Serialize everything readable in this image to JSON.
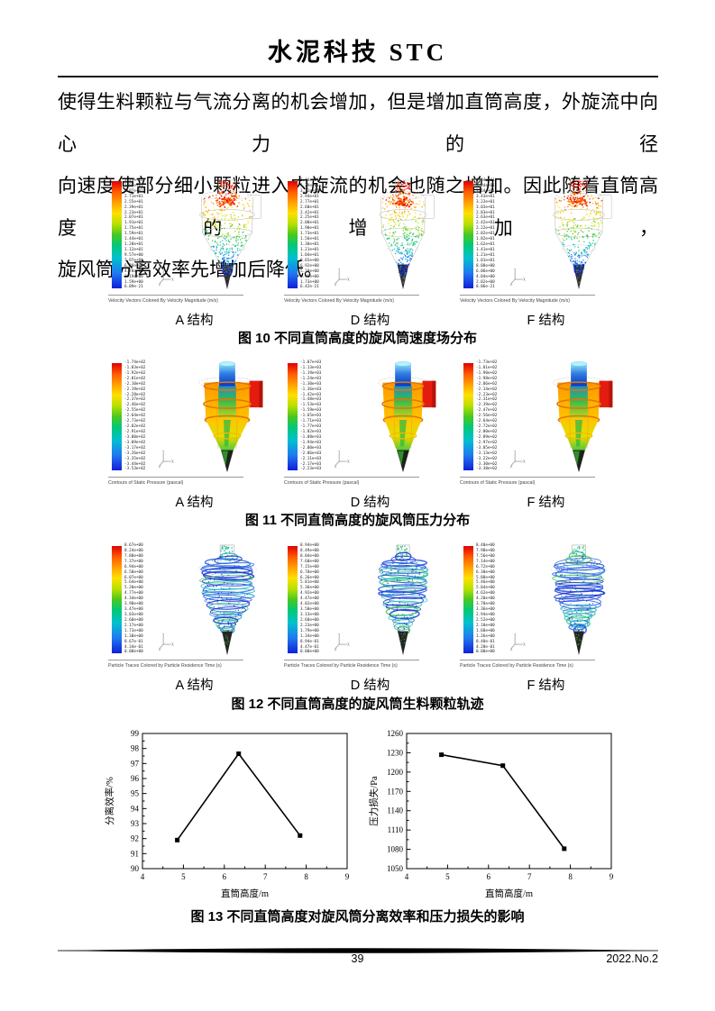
{
  "header": {
    "title": "水泥科技 STC"
  },
  "paragraph": {
    "lines": [
      "使得生料颗粒与气流分离的机会增加，但是增加直筒高度，外旋流中向心力的径",
      "向速度使部分细小颗粒进入内旋流的机会也随之增加。因此随着直筒高度的增加，",
      "旋风筒分离效率先增加后降低。"
    ]
  },
  "figures": {
    "fig10": {
      "caption": "图 10 不同直筒高度的旋风筒速度场分布",
      "legend_text": "Velocity Vectors Colored By Velocity Magnitude (m/s)",
      "render": "vectors",
      "panels": [
        {
          "label": "A 结构",
          "colorbar_ticks": [
            "3.19e+01",
            "3.03e+01",
            "2.87e+01",
            "2.71e+01",
            "2.55e+01",
            "2.39e+01",
            "2.23e+01",
            "2.07e+01",
            "1.91e+01",
            "1.75e+01",
            "1.59e+01",
            "1.44e+01",
            "1.28e+01",
            "1.12e+01",
            "9.57e+00",
            "7.97e+00",
            "6.38e+00",
            "4.78e+00",
            "3.19e+00",
            "1.59e+00",
            "6.09e-21"
          ]
        },
        {
          "label": "D 结构",
          "colorbar_ticks": [
            "3.46e+01",
            "3.29e+01",
            "3.11e+01",
            "2.94e+01",
            "2.77e+01",
            "2.60e+01",
            "2.42e+01",
            "2.25e+01",
            "2.08e+01",
            "1.90e+01",
            "1.73e+01",
            "1.56e+01",
            "1.38e+01",
            "1.21e+01",
            "1.04e+01",
            "8.65e+00",
            "6.92e+00",
            "5.19e+00",
            "3.46e+00",
            "1.73e+00",
            "6.42e-21"
          ]
        },
        {
          "label": "F 结构",
          "colorbar_ticks": [
            "4.04e+01",
            "3.84e+01",
            "3.64e+01",
            "3.43e+01",
            "3.23e+01",
            "3.03e+01",
            "2.83e+01",
            "2.63e+01",
            "2.42e+01",
            "2.22e+01",
            "2.02e+01",
            "1.82e+01",
            "1.62e+01",
            "1.41e+01",
            "1.21e+01",
            "1.01e+01",
            "8.08e+00",
            "6.06e+00",
            "4.04e+00",
            "2.02e+00",
            "8.06e-21"
          ]
        }
      ]
    },
    "fig11": {
      "caption": "图 11 不同直筒高度的旋风筒压力分布",
      "legend_text": "Contours of Static Pressure (pascal)",
      "render": "contours",
      "panels": [
        {
          "label": "A 结构",
          "colorbar_ticks": [
            "-1.74e+02",
            "-1.83e+02",
            "-1.92e+02",
            "-2.01e+02",
            "-2.10e+02",
            "-2.19e+02",
            "-2.28e+02",
            "-2.37e+02",
            "-2.46e+02",
            "-2.55e+02",
            "-2.64e+02",
            "-2.73e+02",
            "-2.82e+02",
            "-2.91e+02",
            "-3.00e+02",
            "-3.09e+02",
            "-3.17e+02",
            "-3.26e+02",
            "-3.35e+02",
            "-3.44e+02",
            "-3.53e+02"
          ]
        },
        {
          "label": "D 结构",
          "colorbar_ticks": [
            "-1.07e+03",
            "-1.13e+03",
            "-1.19e+03",
            "-1.24e+03",
            "-1.30e+03",
            "-1.36e+03",
            "-1.42e+03",
            "-1.48e+03",
            "-1.53e+03",
            "-1.59e+03",
            "-1.65e+03",
            "-1.71e+03",
            "-1.77e+03",
            "-1.82e+03",
            "-1.88e+03",
            "-1.94e+03",
            "-2.00e+03",
            "-2.06e+03",
            "-2.11e+03",
            "-2.17e+03",
            "-2.23e+03"
          ]
        },
        {
          "label": "F 结构",
          "colorbar_ticks": [
            "-1.73e+02",
            "-1.81e+02",
            "-1.90e+02",
            "-1.98e+02",
            "-2.06e+02",
            "-2.14e+02",
            "-2.23e+02",
            "-2.31e+02",
            "-2.39e+02",
            "-2.47e+02",
            "-2.56e+02",
            "-2.64e+02",
            "-2.72e+02",
            "-2.80e+02",
            "-2.89e+02",
            "-2.97e+02",
            "-3.05e+02",
            "-3.13e+02",
            "-3.22e+02",
            "-3.30e+02",
            "-3.38e+02"
          ]
        }
      ]
    },
    "fig12": {
      "caption": "图 12 不同直筒高度的旋风筒生料颗粒轨迹",
      "legend_text": "Particle Traces Colored by Particle Residence Time (s)",
      "render": "traces",
      "panels": [
        {
          "label": "A 结构",
          "colorbar_ticks": [
            "8.67e+00",
            "8.24e+00",
            "7.80e+00",
            "7.37e+00",
            "6.94e+00",
            "6.50e+00",
            "6.07e+00",
            "5.64e+00",
            "5.20e+00",
            "4.77e+00",
            "4.34e+00",
            "3.90e+00",
            "3.47e+00",
            "3.03e+00",
            "2.60e+00",
            "2.17e+00",
            "1.73e+00",
            "1.30e+00",
            "8.67e-01",
            "4.34e-01",
            "0.00e+00"
          ]
        },
        {
          "label": "D 结构",
          "colorbar_ticks": [
            "8.94e+00",
            "8.49e+00",
            "8.04e+00",
            "7.60e+00",
            "7.15e+00",
            "6.70e+00",
            "6.26e+00",
            "5.81e+00",
            "5.36e+00",
            "4.92e+00",
            "4.47e+00",
            "4.02e+00",
            "3.58e+00",
            "3.13e+00",
            "2.68e+00",
            "2.23e+00",
            "1.79e+00",
            "1.34e+00",
            "8.94e-01",
            "4.47e-01",
            "0.00e+00"
          ]
        },
        {
          "label": "F 结构",
          "colorbar_ticks": [
            "8.40e+00",
            "7.98e+00",
            "7.56e+00",
            "7.14e+00",
            "6.72e+00",
            "6.30e+00",
            "5.88e+00",
            "5.46e+00",
            "5.04e+00",
            "4.62e+00",
            "4.20e+00",
            "3.78e+00",
            "3.36e+00",
            "2.94e+00",
            "2.52e+00",
            "2.10e+00",
            "1.68e+00",
            "1.26e+00",
            "8.40e-01",
            "4.20e-01",
            "0.00e+00"
          ]
        }
      ]
    },
    "fig13": {
      "caption": "图 13 不同直筒高度对旋风筒分离效率和压力损失的影响"
    }
  },
  "chart_data": [
    {
      "type": "line",
      "title": "",
      "xlabel": "直筒高度/m",
      "ylabel": "分离效率/%",
      "xlim": [
        4,
        9
      ],
      "ylim": [
        90,
        99
      ],
      "xticks": [
        4,
        5,
        6,
        7,
        8,
        9
      ],
      "yticks": [
        90,
        91,
        92,
        93,
        94,
        95,
        96,
        97,
        98,
        99
      ],
      "x": [
        4.85,
        6.35,
        7.85
      ],
      "y": [
        91.9,
        97.65,
        92.2
      ],
      "marker": "square",
      "line_color": "#000000",
      "grid": false,
      "legend": "none"
    },
    {
      "type": "line",
      "title": "",
      "xlabel": "直筒高度/m",
      "ylabel": "压力损失/Pa",
      "xlim": [
        4,
        9
      ],
      "ylim": [
        1050,
        1260
      ],
      "xticks": [
        4,
        5,
        6,
        7,
        8,
        9
      ],
      "yticks": [
        1050,
        1080,
        1110,
        1140,
        1170,
        1200,
        1230,
        1260
      ],
      "x": [
        4.85,
        6.35,
        7.85
      ],
      "y": [
        1227,
        1210,
        1081
      ],
      "marker": "square",
      "line_color": "#000000",
      "grid": false,
      "legend": "none"
    }
  ],
  "footer": {
    "page_number": "39",
    "issue": "2022.No.2"
  },
  "colors": {
    "colorbar_top": "#e00000",
    "colorbar_bottom": "#1020d8",
    "inlet_red": "#e41c10",
    "text": "#000000"
  }
}
